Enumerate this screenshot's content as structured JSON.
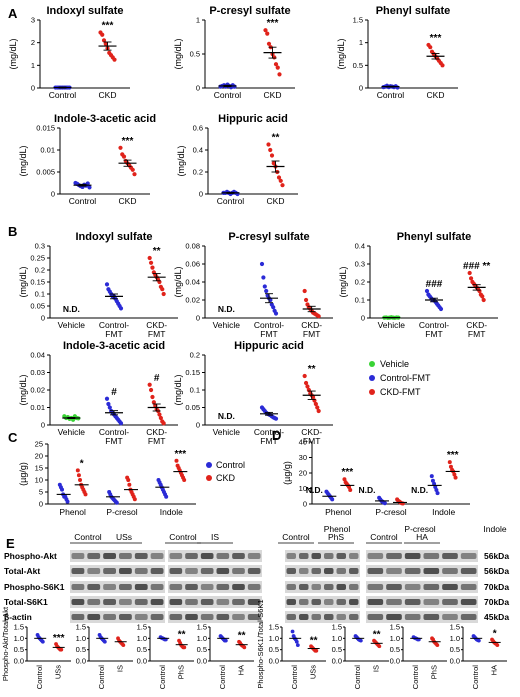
{
  "colors": {
    "control": "#2b2bd6",
    "ckd": "#e0231b",
    "vehicle": "#39d335",
    "band": "#3a3a3a"
  },
  "chart_data": [
    {
      "panel": "A",
      "title": "Indoxyl sulfate",
      "type": "scatter",
      "ylabel": "(mg/dL)",
      "ylim": [
        0,
        3
      ],
      "yticks": [
        0,
        1,
        2,
        3
      ],
      "categories": [
        "Control",
        "CKD"
      ],
      "significance": [
        "",
        "***"
      ],
      "means": [
        0.02,
        1.85
      ],
      "sem": [
        0.02,
        0.18
      ],
      "points": [
        [
          0.02,
          0.02,
          0.02,
          0.02,
          0.02,
          0.02,
          0.02,
          0.02,
          0.02
        ],
        [
          2.45,
          2.35,
          2.1,
          1.95,
          1.75,
          1.55,
          1.45,
          1.35,
          1.25
        ]
      ]
    },
    {
      "panel": "",
      "title": "P-cresyl sulfate",
      "type": "scatter",
      "ylabel": "(mg/dL)",
      "ylim": [
        0,
        1
      ],
      "yticks": [
        0,
        0.5,
        1.0
      ],
      "categories": [
        "Control",
        "CKD"
      ],
      "significance": [
        "",
        "***"
      ],
      "means": [
        0.03,
        0.52
      ],
      "sem": [
        0.01,
        0.08
      ],
      "points": [
        [
          0.02,
          0.03,
          0.04,
          0.02,
          0.05,
          0.03,
          0.01,
          0.04,
          0.02
        ],
        [
          0.85,
          0.8,
          0.65,
          0.6,
          0.5,
          0.45,
          0.35,
          0.3,
          0.2
        ]
      ]
    },
    {
      "panel": "",
      "title": "Phenyl sulfate",
      "type": "scatter",
      "ylabel": "(mg/dL)",
      "ylim": [
        0,
        1.5
      ],
      "yticks": [
        0,
        0.5,
        1.0,
        1.5
      ],
      "categories": [
        "Control",
        "CKD"
      ],
      "significance": [
        "",
        "***"
      ],
      "means": [
        0.03,
        0.7
      ],
      "sem": [
        0.01,
        0.06
      ],
      "points": [
        [
          0.02,
          0.03,
          0.05,
          0.02,
          0.04,
          0.03,
          0.02,
          0.04,
          0.01
        ],
        [
          0.95,
          0.9,
          0.8,
          0.75,
          0.7,
          0.65,
          0.6,
          0.55,
          0.5
        ]
      ]
    },
    {
      "panel": "",
      "title": "Indole-3-acetic acid",
      "type": "scatter",
      "ylabel": "(mg/dL)",
      "ylim": [
        0,
        0.015
      ],
      "yticks": [
        0,
        0.005,
        0.01,
        0.015
      ],
      "categories": [
        "Control",
        "CKD"
      ],
      "significance": [
        "",
        "***"
      ],
      "means": [
        0.002,
        0.007
      ],
      "sem": [
        0.0002,
        0.0007
      ],
      "points": [
        [
          0.0025,
          0.0023,
          0.002,
          0.0018,
          0.0016,
          0.0021,
          0.0019,
          0.0024,
          0.0015
        ],
        [
          0.0105,
          0.009,
          0.0085,
          0.0075,
          0.007,
          0.0065,
          0.006,
          0.0055,
          0.0045
        ]
      ]
    },
    {
      "panel": "",
      "title": "Hippuric acid",
      "type": "scatter",
      "ylabel": "(mg/dL)",
      "ylim": [
        0,
        0.6
      ],
      "yticks": [
        0,
        0.2,
        0.4,
        0.6
      ],
      "categories": [
        "Control",
        "CKD"
      ],
      "significance": [
        "",
        "**"
      ],
      "means": [
        0.01,
        0.25
      ],
      "sem": [
        0.005,
        0.05
      ],
      "points": [
        [
          0.01,
          0.01,
          0.02,
          0.01,
          0.0,
          0.01,
          0.02,
          0.01,
          0.0
        ],
        [
          0.45,
          0.4,
          0.35,
          0.28,
          0.25,
          0.2,
          0.15,
          0.12,
          0.08
        ]
      ]
    },
    {
      "panel": "B",
      "title": "Indoxyl sulfate",
      "type": "scatter",
      "ylabel": "(mg/dL)",
      "ylim": [
        0,
        0.3
      ],
      "yticks": [
        0,
        0.05,
        0.1,
        0.15,
        0.2,
        0.25,
        0.3
      ],
      "categories": [
        "Vehicle",
        "Control-\nFMT",
        "CKD-\nFMT"
      ],
      "nd": [
        true,
        false,
        false
      ],
      "significance": [
        "",
        "",
        "**"
      ],
      "means": [
        null,
        0.09,
        0.17
      ],
      "sem": [
        null,
        0.01,
        0.015
      ],
      "points": [
        [],
        [
          0.14,
          0.12,
          0.11,
          0.1,
          0.09,
          0.09,
          0.08,
          0.07,
          0.06,
          0.05,
          0.04
        ],
        [
          0.25,
          0.23,
          0.21,
          0.19,
          0.18,
          0.17,
          0.16,
          0.15,
          0.13,
          0.12,
          0.1
        ]
      ]
    },
    {
      "panel": "",
      "title": "P-cresyl sulfate",
      "type": "scatter",
      "ylabel": "(mg/dL)",
      "ylim": [
        0,
        0.08
      ],
      "yticks": [
        0,
        0.02,
        0.04,
        0.06,
        0.08
      ],
      "categories": [
        "Vehicle",
        "Control-\nFMT",
        "CKD-\nFMT"
      ],
      "nd": [
        true,
        false,
        false
      ],
      "significance": [
        "",
        "",
        ""
      ],
      "means": [
        null,
        0.022,
        0.01
      ],
      "sem": [
        null,
        0.005,
        0.003
      ],
      "points": [
        [],
        [
          0.06,
          0.045,
          0.035,
          0.03,
          0.025,
          0.022,
          0.02,
          0.015,
          0.012,
          0.008,
          0.005
        ],
        [
          0.03,
          0.02,
          0.015,
          0.012,
          0.01,
          0.008,
          0.006,
          0.005,
          0.004,
          0.003,
          0.002
        ]
      ]
    },
    {
      "panel": "",
      "title": "Phenyl sulfate",
      "type": "scatter",
      "ylabel": "(mg/dL)",
      "ylim": [
        0,
        0.4
      ],
      "yticks": [
        0,
        0.1,
        0.2,
        0.3,
        0.4
      ],
      "categories": [
        "Vehicle",
        "Control-\nFMT",
        "CKD-\nFMT"
      ],
      "nd": [
        false,
        false,
        false
      ],
      "significance": [
        "",
        "###",
        "### **"
      ],
      "means": [
        0.002,
        0.1,
        0.17
      ],
      "sem": [
        0.001,
        0.01,
        0.015
      ],
      "points": [
        [
          0.002,
          0.003,
          0.001,
          0.002,
          0.004,
          0.002,
          0.001,
          0.003,
          0.002
        ],
        [
          0.15,
          0.13,
          0.12,
          0.11,
          0.1,
          0.1,
          0.09,
          0.08,
          0.07,
          0.06,
          0.05
        ],
        [
          0.25,
          0.22,
          0.2,
          0.19,
          0.18,
          0.17,
          0.16,
          0.15,
          0.13,
          0.12,
          0.1
        ]
      ]
    },
    {
      "panel": "",
      "title": "Indole-3-acetic acid",
      "type": "scatter",
      "ylabel": "(mg/dL)",
      "ylim": [
        0,
        0.04
      ],
      "yticks": [
        0,
        0.01,
        0.02,
        0.03,
        0.04
      ],
      "categories": [
        "Vehicle",
        "Control-\nFMT",
        "CKD-\nFMT"
      ],
      "nd": [
        false,
        false,
        false
      ],
      "significance": [
        "",
        "#",
        "#"
      ],
      "means": [
        0.004,
        0.007,
        0.01
      ],
      "sem": [
        0.0003,
        0.0012,
        0.002
      ],
      "points": [
        [
          0.005,
          0.004,
          0.0045,
          0.0035,
          0.004,
          0.003,
          0.005,
          0.004,
          0.0038
        ],
        [
          0.015,
          0.012,
          0.01,
          0.008,
          0.007,
          0.006,
          0.005,
          0.004,
          0.003,
          0.002,
          0.001
        ],
        [
          0.023,
          0.02,
          0.016,
          0.013,
          0.011,
          0.009,
          0.008,
          0.006,
          0.004,
          0.002,
          0.001
        ]
      ]
    },
    {
      "panel": "",
      "title": "Hippuric acid",
      "type": "scatter",
      "ylabel": "(mg/dL)",
      "ylim": [
        0,
        0.2
      ],
      "yticks": [
        0,
        0.05,
        0.1,
        0.15,
        0.2
      ],
      "categories": [
        "Vehicle",
        "Control-\nFMT",
        "CKD-\nFMT"
      ],
      "nd": [
        true,
        false,
        false
      ],
      "significance": [
        "",
        "",
        "**"
      ],
      "means": [
        null,
        0.032,
        0.085
      ],
      "sem": [
        null,
        0.004,
        0.012
      ],
      "points": [
        [],
        [
          0.05,
          0.045,
          0.04,
          0.035,
          0.032,
          0.03,
          0.028,
          0.025,
          0.022,
          0.02,
          0.018
        ],
        [
          0.14,
          0.12,
          0.11,
          0.1,
          0.09,
          0.085,
          0.08,
          0.07,
          0.06,
          0.05,
          0.04
        ]
      ]
    }
  ],
  "legend_b": [
    {
      "label": "Vehicle",
      "color": "vehicle"
    },
    {
      "label": "Control-FMT",
      "color": "control"
    },
    {
      "label": "CKD-FMT",
      "color": "ckd"
    }
  ],
  "panel_c": {
    "label": "C",
    "ylabel": "(µg/g)",
    "ylim": [
      0,
      25
    ],
    "yticks": [
      0,
      5,
      10,
      15,
      20,
      25
    ],
    "groups": [
      "Phenol",
      "P-cresol",
      "Indole"
    ],
    "significance": [
      "*",
      "",
      "***"
    ],
    "nd": [
      false,
      false,
      false
    ],
    "series": [
      {
        "name": "Control",
        "means": [
          4,
          3,
          7
        ],
        "points": [
          [
            8,
            7,
            6,
            4,
            3,
            3,
            2,
            1
          ],
          [
            5,
            4,
            3,
            2.5,
            2,
            1.5,
            1,
            0.5
          ],
          [
            10,
            9,
            8,
            7,
            6,
            5,
            4,
            3
          ]
        ]
      },
      {
        "name": "CKD",
        "means": [
          8,
          6,
          13.5
        ],
        "points": [
          [
            14,
            12,
            10,
            8,
            7,
            6,
            5,
            4
          ],
          [
            11,
            10,
            8,
            6,
            5,
            4,
            3,
            2
          ],
          [
            18,
            16,
            15,
            14,
            13,
            12,
            11,
            10
          ]
        ]
      }
    ]
  },
  "panel_d": {
    "label": "D",
    "ylabel": "(µg/g)",
    "ylim": [
      0,
      40
    ],
    "yticks": [
      0,
      10,
      20,
      30,
      40
    ],
    "groups": [
      "Phenol",
      "P-cresol",
      "Indole"
    ],
    "significance": [
      "***",
      "",
      ""
    ],
    "significance_right": [
      "",
      "",
      "***"
    ],
    "nd_labels": [
      "N.D.",
      "N.D.",
      "N.D."
    ],
    "series": [
      {
        "name": "Control",
        "means": [
          5,
          2,
          12
        ],
        "points": [
          [
            8,
            7,
            6,
            5,
            4,
            3
          ],
          [
            4,
            3,
            2,
            1.5,
            1,
            0.5
          ],
          [
            18,
            15,
            13,
            11,
            9,
            7
          ]
        ]
      },
      {
        "name": "CKD",
        "means": [
          12,
          1,
          21
        ],
        "points": [
          [
            16,
            14,
            13,
            12,
            11,
            9
          ],
          [
            3,
            2,
            1.5,
            1,
            0.5,
            0.3
          ],
          [
            27,
            24,
            22,
            21,
            19,
            17
          ]
        ]
      }
    ]
  },
  "legend_cd": [
    {
      "label": "Control",
      "color": "control"
    },
    {
      "label": "CKD",
      "color": "ckd"
    }
  ],
  "panel_e": {
    "label": "E",
    "row_labels_left": [
      "Phospho-Akt",
      "Total-Akt",
      "Phospho-S6K1",
      "Total-S6K1",
      "β-actin"
    ],
    "kda": [
      "56kDa",
      "56kDa",
      "70kDa",
      "70kDa",
      "45kDa"
    ],
    "blot_groups": [
      "Control",
      "USs",
      "Control",
      "IS",
      "Control",
      "PhS",
      "Control",
      "HA"
    ],
    "ylabel_akt": "Phospho-Akt/Total-Akt",
    "ylabel_s6k1": "Phospho-S6K1/Total-S6K1",
    "yticks": [
      0.0,
      0.5,
      1.0,
      1.5
    ],
    "ylim": [
      0,
      1.5
    ],
    "bar_panels": [
      {
        "categories": [
          "Control",
          "USs"
        ],
        "means": [
          1.0,
          0.6
        ],
        "significance": "***",
        "points": [
          [
            1.15,
            1.05,
            1.0,
            0.95,
            0.9,
            0.85
          ],
          [
            0.75,
            0.65,
            0.6,
            0.55,
            0.5,
            0.5
          ]
        ]
      },
      {
        "categories": [
          "Control",
          "IS"
        ],
        "means": [
          1.0,
          0.85
        ],
        "significance": "",
        "points": [
          [
            1.15,
            1.05,
            1.0,
            0.95,
            0.9,
            0.85
          ],
          [
            1.0,
            0.9,
            0.85,
            0.8,
            0.75,
            0.7
          ]
        ]
      },
      {
        "categories": [
          "Control",
          "PhS"
        ],
        "means": [
          1.0,
          0.72
        ],
        "significance": "**",
        "points": [
          [
            1.05,
            1.02,
            1.0,
            0.98,
            0.95,
            0.95
          ],
          [
            0.9,
            0.8,
            0.7,
            0.65,
            0.6,
            0.6
          ]
        ]
      },
      {
        "categories": [
          "Control",
          "HA"
        ],
        "means": [
          1.0,
          0.72
        ],
        "significance": "**",
        "points": [
          [
            1.1,
            1.05,
            1.0,
            0.95,
            0.9,
            0.9
          ],
          [
            0.85,
            0.8,
            0.72,
            0.68,
            0.65,
            0.6
          ]
        ]
      },
      {
        "categories": [
          "Control",
          "USs"
        ],
        "means": [
          1.0,
          0.55
        ],
        "significance": "**",
        "points": [
          [
            1.3,
            1.1,
            1.0,
            0.95,
            0.85,
            0.7
          ],
          [
            0.65,
            0.6,
            0.55,
            0.5,
            0.45,
            0.45
          ]
        ]
      },
      {
        "categories": [
          "Control",
          "IS"
        ],
        "means": [
          1.0,
          0.78
        ],
        "significance": "**",
        "points": [
          [
            1.1,
            1.05,
            1.0,
            0.95,
            0.92,
            0.9
          ],
          [
            0.9,
            0.85,
            0.8,
            0.75,
            0.7,
            0.65
          ]
        ]
      },
      {
        "categories": [
          "Control",
          "PhS"
        ],
        "means": [
          1.0,
          0.85
        ],
        "significance": "",
        "points": [
          [
            1.05,
            1.02,
            1.0,
            0.98,
            0.95,
            0.95
          ],
          [
            1.0,
            0.95,
            0.85,
            0.8,
            0.75,
            0.7
          ]
        ]
      },
      {
        "categories": [
          "Control",
          "HA"
        ],
        "means": [
          1.0,
          0.82
        ],
        "significance": "*",
        "points": [
          [
            1.1,
            1.05,
            1.0,
            0.95,
            0.92,
            0.9
          ],
          [
            0.95,
            0.88,
            0.82,
            0.78,
            0.75,
            0.7
          ]
        ]
      }
    ]
  },
  "nd_text": "N.D."
}
